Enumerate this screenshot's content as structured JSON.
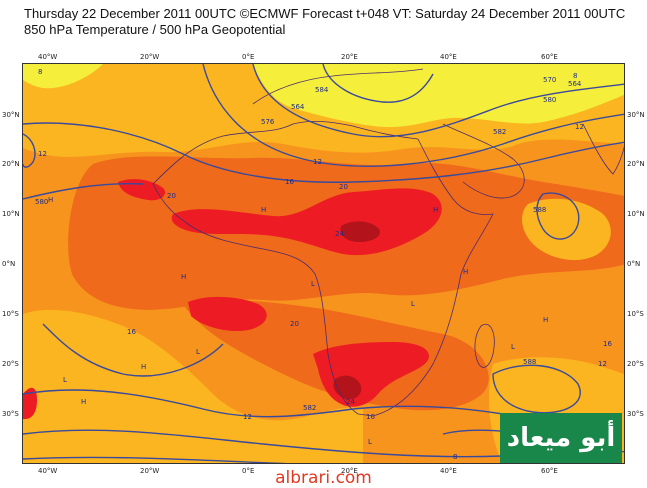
{
  "header": {
    "line1": "Thursday 22 December 2011 00UTC ©ECMWF Forecast t+048 VT: Saturday 24 December 2011 00UTC",
    "line2": "850 hPa Temperature / 500 hPa Geopotential"
  },
  "axes": {
    "lat_labels": [
      "30°N",
      "20°N",
      "10°N",
      "0°N",
      "10°S",
      "20°S",
      "30°S"
    ],
    "lon_labels": [
      "40°W",
      "20°W",
      "0°E",
      "20°E",
      "40°E",
      "60°E"
    ]
  },
  "contour_labels": [
    "564",
    "576",
    "584",
    "582",
    "580",
    "588",
    "570",
    "564",
    "580",
    "582",
    "588"
  ],
  "temperature_labels": [
    "8",
    "8",
    "12",
    "12",
    "16",
    "20",
    "20",
    "24",
    "12",
    "16",
    "20",
    "16",
    "12",
    "24",
    "16",
    "8",
    "12"
  ],
  "pressure_centers": [
    "H",
    "H",
    "H",
    "H",
    "L",
    "L",
    "H",
    "H",
    "L",
    "L",
    "H",
    "L",
    "H",
    "L"
  ],
  "logo_text": "أبو ميعاد",
  "credit": "albrari.com",
  "colors": {
    "yellow": "#f5ee3a",
    "light_orange": "#fbb520",
    "orange": "#f7941d",
    "dark_orange": "#ef6a1a",
    "red": "#ed1c24",
    "dark_red": "#b3131b",
    "contour": "#3a4a9c",
    "coast": "#4d2b6e"
  }
}
